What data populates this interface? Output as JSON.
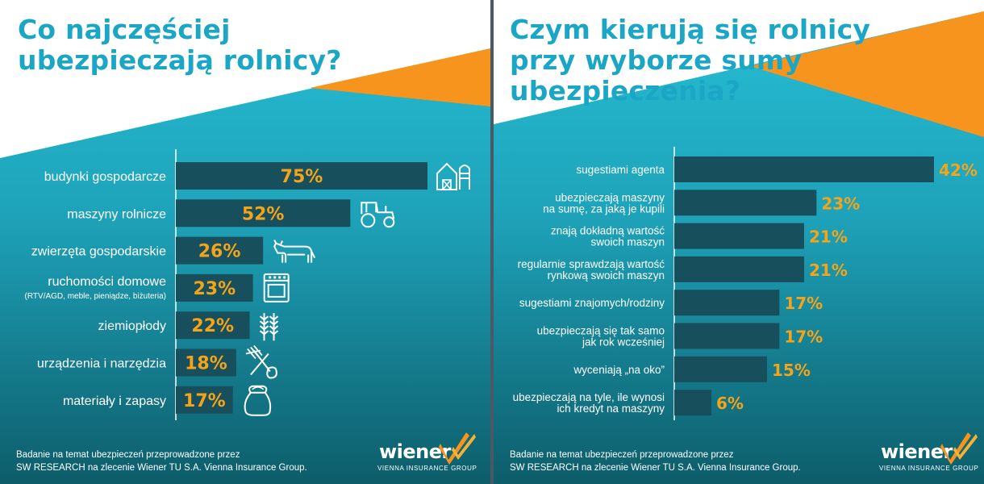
{
  "colors": {
    "title": "#1aa6c4",
    "bar": "#17505c",
    "value": "#f5a419",
    "accent_orange": "#f7941d",
    "bg_top": "#ffffff",
    "bg_teal": "#22b7cf",
    "bg_dark": "#0f6876"
  },
  "left": {
    "title_lines": [
      "Co najczęściej",
      "ubezpieczają rolnicy?"
    ],
    "footer_lines": [
      "Badanie na temat ubezpieczeń przeprowadzone przez",
      "SW RESEARCH na zlecenie Wiener TU S.A. Vienna Insurance Group."
    ],
    "brand": {
      "name": "wiener",
      "tagline": "VIENNA INSURANCE GROUP"
    }
  },
  "right": {
    "title_lines": [
      "Czym kierują się rolnicy",
      "przy wyborze sumy",
      "ubezpieczenia?"
    ],
    "footer_lines": [
      "Badanie na temat ubezpieczeń przeprowadzone przez",
      "SW RESEARCH na zlecenie Wiener TU S.A. Vienna Insurance Group."
    ],
    "brand": {
      "name": "wiener",
      "tagline": "VIENNA INSURANCE GROUP"
    }
  },
  "chart_data": [
    {
      "type": "bar",
      "orientation": "horizontal",
      "title": "Co najczęściej ubezpieczają rolnicy?",
      "xlim": [
        0,
        100
      ],
      "categories": [
        "budynki gospodarcze",
        "maszyny rolnicze",
        "zwierzęta gospodarskie",
        "ruchomości domowe",
        "ziemiopłody",
        "urządzenia i narzędzia",
        "materiały i zapasy"
      ],
      "category_notes": [
        "",
        "",
        "",
        "(RTV/AGD, meble, pieniądze, biżuteria)",
        "",
        "",
        ""
      ],
      "values": [
        75,
        52,
        26,
        23,
        22,
        18,
        17
      ],
      "value_labels": [
        "75%",
        "52%",
        "26%",
        "23%",
        "22%",
        "18%",
        "17%"
      ],
      "icons": [
        "barn-icon",
        "tractor-icon",
        "cow-icon",
        "stove-icon",
        "wheat-icon",
        "pitchfork-shovel-icon",
        "sack-icon"
      ],
      "grid": false,
      "legend": "none"
    },
    {
      "type": "bar",
      "orientation": "horizontal",
      "title": "Czym kierują się rolnicy przy wyborze sumy ubezpieczenia?",
      "xlim": [
        0,
        100
      ],
      "categories": [
        [
          "sugestiami agenta"
        ],
        [
          "ubezpieczają maszyny",
          "na sumę, za jaką je kupili"
        ],
        [
          "znają dokładną wartość",
          "swoich maszyn"
        ],
        [
          "regularnie sprawdzają wartość",
          "rynkową swoich maszyn"
        ],
        [
          "sugestiami znajomych/rodziny"
        ],
        [
          "ubezpieczają się tak samo",
          "jak rok wcześniej"
        ],
        [
          "wyceniają „na oko”"
        ],
        [
          "ubezpieczają na tyle, ile wynosi",
          "ich kredyt na maszyny"
        ]
      ],
      "values": [
        42,
        23,
        21,
        21,
        17,
        17,
        15,
        6
      ],
      "value_labels": [
        "42%",
        "23%",
        "21%",
        "21%",
        "17%",
        "17%",
        "15%",
        "6%"
      ],
      "grid": false,
      "legend": "none"
    }
  ]
}
